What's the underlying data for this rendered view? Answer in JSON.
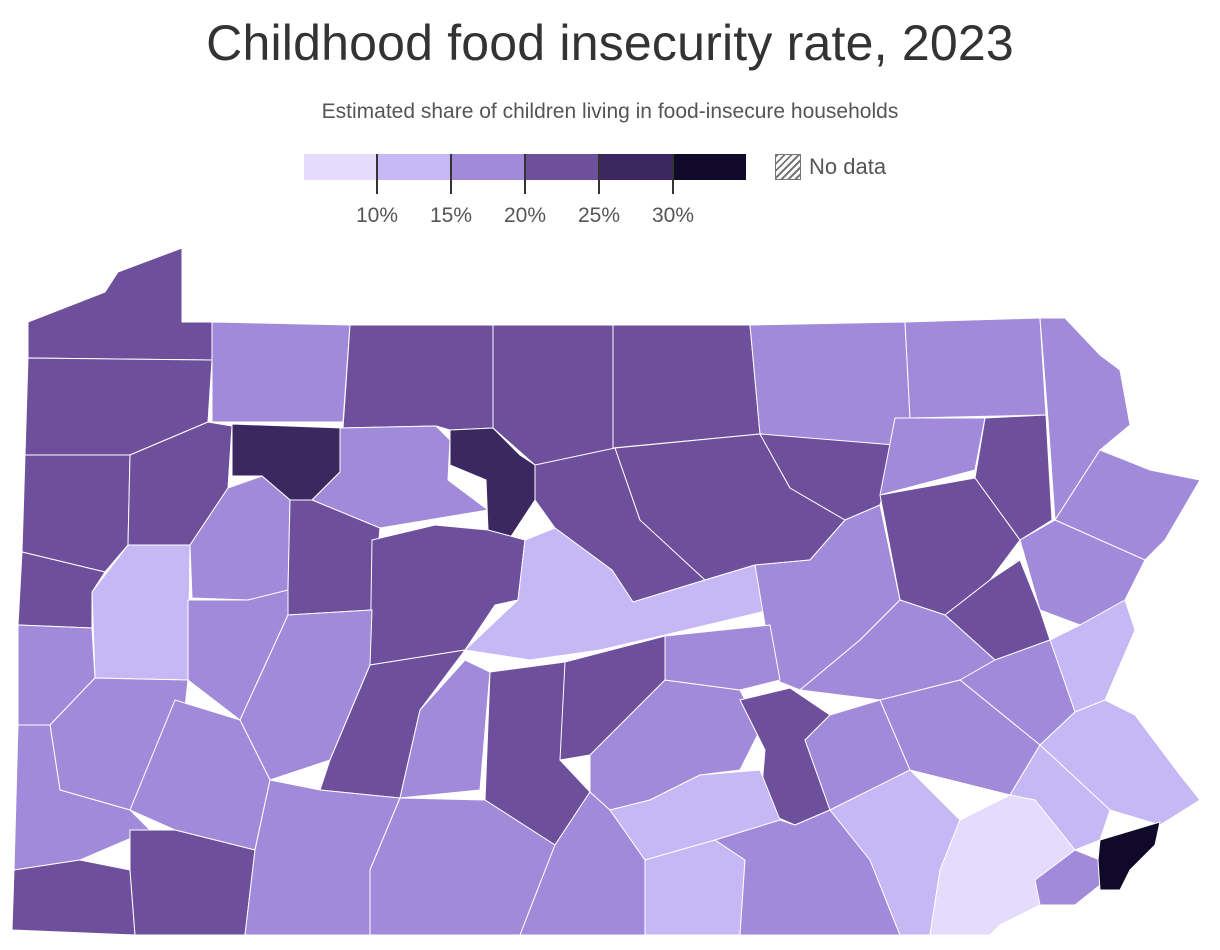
{
  "title": "Childhood food insecurity rate, 2023",
  "subtitle": "Estimated share of children living in food-insecure households",
  "legend": {
    "colors": [
      "#e5dbfd",
      "#c6b7f5",
      "#a18ad9",
      "#6e4f9b",
      "#3c2860",
      "#110929"
    ],
    "breaks": [
      "10%",
      "15%",
      "20%",
      "25%",
      "30%"
    ],
    "nodata_label": "No data"
  },
  "map": {
    "region": "Pennsylvania counties",
    "colors": {
      "class_1": "#e5dbfd",
      "class_2": "#c6b7f5",
      "class_3": "#a18ad9",
      "class_4": "#6e4f9b",
      "class_5": "#3c2860",
      "class_6": "#110929"
    }
  }
}
